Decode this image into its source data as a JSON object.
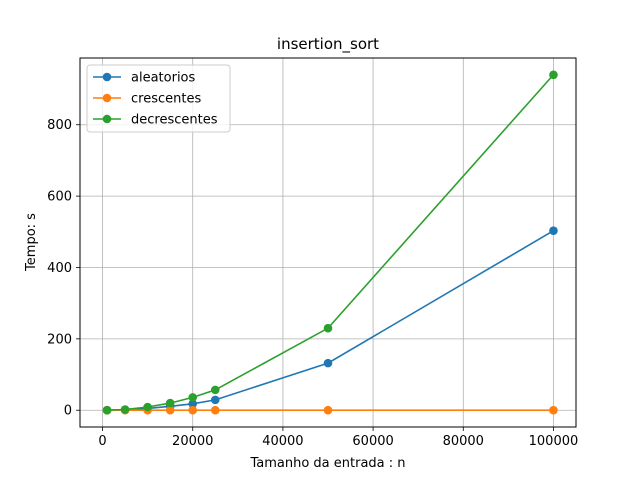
{
  "chart_data": {
    "type": "line",
    "title": "insertion_sort",
    "xlabel": "Tamanho da entrada : n",
    "ylabel": "Tempo: s",
    "xlim": [
      -5000,
      105000
    ],
    "ylim": [
      -47,
      987
    ],
    "xticks": [
      0,
      20000,
      40000,
      60000,
      80000,
      100000
    ],
    "yticks": [
      0,
      200,
      400,
      600,
      800
    ],
    "grid": true,
    "legend_position": "top-left",
    "x": [
      1000,
      5000,
      10000,
      15000,
      20000,
      25000,
      50000,
      100000
    ],
    "series": [
      {
        "name": "aleatorios",
        "color": "#1f77b4",
        "values": [
          0,
          1,
          5,
          11,
          18,
          29,
          132,
          503
        ]
      },
      {
        "name": "crescentes",
        "color": "#ff7f0e",
        "values": [
          0,
          0,
          0,
          0,
          0,
          0,
          0,
          0
        ]
      },
      {
        "name": "decrescentes",
        "color": "#2ca02c",
        "values": [
          0,
          2,
          9,
          20,
          36,
          57,
          230,
          940
        ]
      }
    ]
  }
}
